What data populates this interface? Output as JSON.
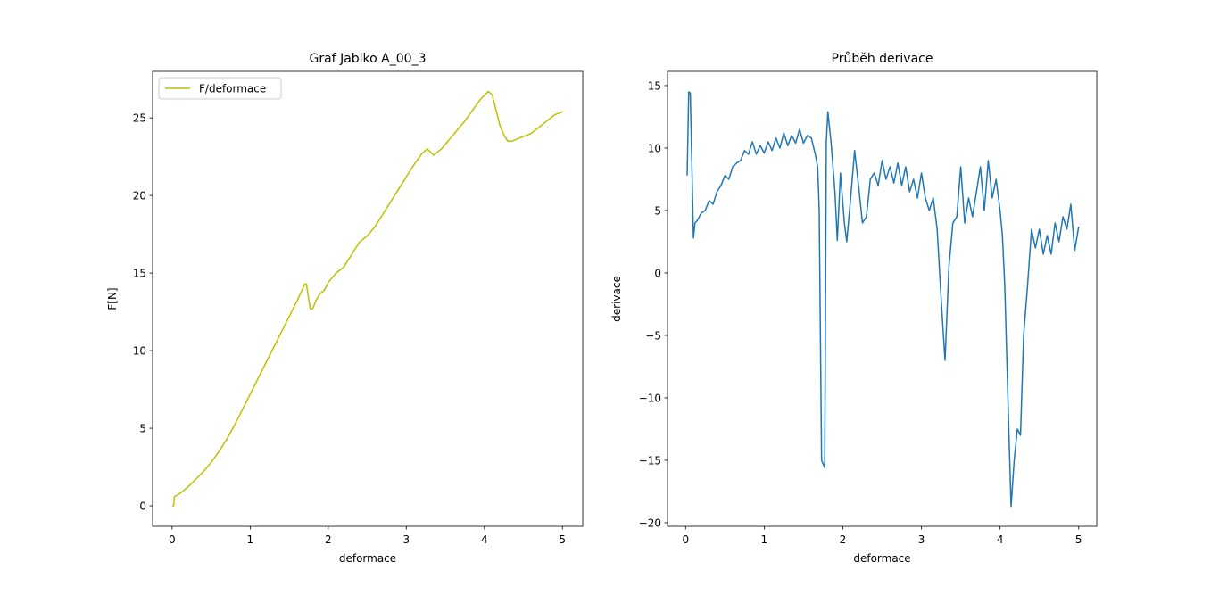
{
  "chart_data": [
    {
      "type": "line",
      "title": "Graf Jablko A_00_3",
      "x_label": "deformace",
      "y_label": "F[N]",
      "x": [
        0,
        0.02,
        0.03,
        0.1,
        0.2,
        0.3,
        0.4,
        0.5,
        0.6,
        0.7,
        0.8,
        0.9,
        1.0,
        1.1,
        1.2,
        1.3,
        1.4,
        1.5,
        1.6,
        1.7,
        1.72,
        1.75,
        1.77,
        1.8,
        1.85,
        1.9,
        1.95,
        2.0,
        2.1,
        2.2,
        2.3,
        2.4,
        2.5,
        2.6,
        2.7,
        2.8,
        2.9,
        3.0,
        3.1,
        3.2,
        3.27,
        3.35,
        3.45,
        3.55,
        3.65,
        3.75,
        3.85,
        3.95,
        4.05,
        4.1,
        4.15,
        4.2,
        4.25,
        4.3,
        4.35,
        4.5,
        4.6,
        4.7,
        4.8,
        4.9,
        5.0
      ],
      "series": [
        {
          "name": "F/deformace",
          "color": "#bfbf00",
          "values": [
            0,
            0,
            0.6,
            0.8,
            1.2,
            1.7,
            2.2,
            2.8,
            3.5,
            4.3,
            5.2,
            6.2,
            7.2,
            8.2,
            9.2,
            10.2,
            11.2,
            12.2,
            13.2,
            14.3,
            14.3,
            13.3,
            12.7,
            12.7,
            13.3,
            13.7,
            13.9,
            14.4,
            15.0,
            15.4,
            16.2,
            17.0,
            17.4,
            18.0,
            18.8,
            19.6,
            20.4,
            21.2,
            22.0,
            22.7,
            23.0,
            22.6,
            23.0,
            23.6,
            24.2,
            24.8,
            25.5,
            26.2,
            26.7,
            26.5,
            25.5,
            24.5,
            23.9,
            23.5,
            23.5,
            23.8,
            24.0,
            24.4,
            24.8,
            25.2,
            25.4
          ]
        }
      ],
      "legend": "upper left",
      "xlim": [
        -0.25,
        5.26
      ],
      "ylim": [
        -1.32,
        28.0
      ],
      "xticks": [
        0,
        1,
        2,
        3,
        4,
        5
      ],
      "yticks": [
        0,
        5,
        10,
        15,
        20,
        25
      ]
    },
    {
      "type": "line",
      "title": "Průběh derivace",
      "x_label": "deformace",
      "y_label": "derivace",
      "x": [
        0.02,
        0.04,
        0.06,
        0.1,
        0.12,
        0.15,
        0.2,
        0.25,
        0.3,
        0.35,
        0.4,
        0.45,
        0.5,
        0.55,
        0.6,
        0.65,
        0.7,
        0.75,
        0.8,
        0.85,
        0.9,
        0.95,
        1.0,
        1.05,
        1.1,
        1.15,
        1.2,
        1.25,
        1.3,
        1.35,
        1.4,
        1.45,
        1.5,
        1.55,
        1.6,
        1.65,
        1.68,
        1.7,
        1.73,
        1.77,
        1.79,
        1.81,
        1.85,
        1.9,
        1.93,
        1.97,
        2.02,
        2.05,
        2.1,
        2.15,
        2.2,
        2.25,
        2.3,
        2.35,
        2.4,
        2.45,
        2.5,
        2.55,
        2.6,
        2.65,
        2.7,
        2.75,
        2.8,
        2.85,
        2.9,
        2.95,
        3.0,
        3.05,
        3.1,
        3.15,
        3.2,
        3.25,
        3.3,
        3.35,
        3.4,
        3.45,
        3.5,
        3.55,
        3.6,
        3.65,
        3.7,
        3.75,
        3.8,
        3.85,
        3.9,
        3.95,
        4.0,
        4.03,
        4.06,
        4.1,
        4.14,
        4.18,
        4.22,
        4.26,
        4.3,
        4.35,
        4.4,
        4.45,
        4.5,
        4.55,
        4.6,
        4.65,
        4.7,
        4.75,
        4.8,
        4.85,
        4.9,
        4.95,
        5.0
      ],
      "series": [
        {
          "color": "#1f77b4",
          "values": [
            7.8,
            14.5,
            14.4,
            2.8,
            4.0,
            4.2,
            4.8,
            5.0,
            5.8,
            5.5,
            6.5,
            7.0,
            7.8,
            7.5,
            8.5,
            8.8,
            9.0,
            9.8,
            9.5,
            10.5,
            9.5,
            10.2,
            9.6,
            10.5,
            9.8,
            10.8,
            10.0,
            11.2,
            10.2,
            11.0,
            10.4,
            11.5,
            10.4,
            11.0,
            10.8,
            9.5,
            8.5,
            5.0,
            -15.0,
            -15.6,
            10.5,
            12.9,
            10.5,
            6.5,
            2.6,
            8.0,
            4.0,
            2.5,
            6.0,
            9.8,
            7.0,
            4.0,
            4.5,
            7.5,
            8.0,
            7.0,
            9.0,
            7.5,
            8.5,
            7.2,
            8.8,
            7.0,
            8.5,
            6.5,
            7.5,
            6.0,
            8.0,
            6.0,
            5.0,
            6.0,
            3.5,
            -2.0,
            -7.0,
            0.5,
            4.0,
            4.5,
            8.5,
            4.0,
            6.0,
            4.5,
            6.5,
            8.5,
            5.0,
            9.0,
            6.0,
            7.5,
            5.0,
            3.0,
            -1.0,
            -10.0,
            -18.7,
            -15.0,
            -12.5,
            -13.0,
            -5.0,
            -1.0,
            3.5,
            2.0,
            3.5,
            1.5,
            3.0,
            1.5,
            4.0,
            2.5,
            4.5,
            3.5,
            5.5,
            1.8,
            3.7
          ]
        }
      ],
      "xlim": [
        -0.23,
        5.23
      ],
      "ylim": [
        -20.29,
        16.14
      ],
      "xticks": [
        0,
        1,
        2,
        3,
        4,
        5
      ],
      "yticks": [
        {
          "value": -20,
          "label": "−20"
        },
        {
          "value": -15,
          "label": "−15"
        },
        {
          "value": -10,
          "label": "−10"
        },
        {
          "value": -5,
          "label": "−5"
        },
        0,
        5,
        10,
        15
      ]
    }
  ]
}
